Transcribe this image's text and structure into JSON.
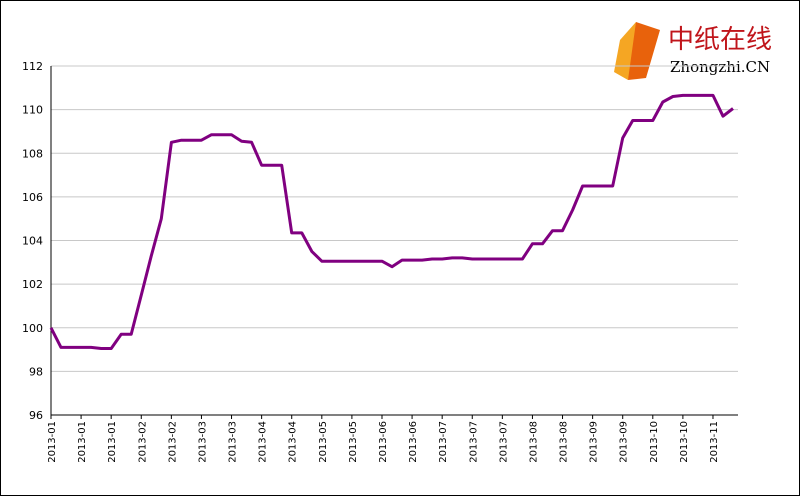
{
  "logo": {
    "name": "中纸在线",
    "domain": "Zhongzhi.CN"
  },
  "chart_data": {
    "type": "line",
    "categories": [
      "2013-01",
      null,
      null,
      "2013-01",
      null,
      null,
      "2013-01",
      null,
      null,
      "2013-02",
      null,
      null,
      "2013-02",
      null,
      null,
      "2013-03",
      null,
      null,
      "2013-03",
      null,
      null,
      "2013-04",
      null,
      null,
      "2013-04",
      null,
      null,
      "2013-05",
      null,
      null,
      "2013-05",
      null,
      null,
      "2013-06",
      null,
      null,
      "2013-06",
      null,
      null,
      "2013-07",
      null,
      null,
      "2013-07",
      null,
      null,
      "2013-07",
      null,
      null,
      "2013-08",
      null,
      null,
      "2013-08",
      null,
      null,
      "2013-09",
      null,
      null,
      "2013-09",
      null,
      null,
      "2013-10",
      null,
      null,
      "2013-10",
      null,
      null,
      "2013-11",
      null,
      null
    ],
    "series": [
      {
        "color": "#800080",
        "values": [
          100.0,
          99.1,
          99.1,
          99.1,
          99.1,
          99.05,
          99.05,
          99.7,
          99.7,
          101.5,
          103.3,
          105.0,
          108.5,
          108.6,
          108.6,
          108.6,
          108.85,
          108.85,
          108.85,
          108.55,
          108.5,
          107.45,
          107.45,
          107.45,
          104.35,
          104.35,
          103.5,
          103.05,
          103.05,
          103.05,
          103.05,
          103.05,
          103.05,
          103.05,
          102.8,
          103.1,
          103.1,
          103.1,
          103.15,
          103.15,
          103.2,
          103.2,
          103.15,
          103.15,
          103.15,
          103.15,
          103.15,
          103.15,
          103.85,
          103.85,
          104.45,
          104.45,
          105.4,
          106.5,
          106.5,
          106.5,
          106.5,
          108.7,
          109.5,
          109.5,
          109.5,
          110.35,
          110.6,
          110.65,
          110.65,
          110.65,
          110.65,
          109.7,
          110.05
        ]
      }
    ],
    "ylim": [
      96,
      112
    ],
    "yticks": [
      96,
      98,
      100,
      102,
      104,
      106,
      108,
      110,
      112
    ],
    "grid": true
  }
}
